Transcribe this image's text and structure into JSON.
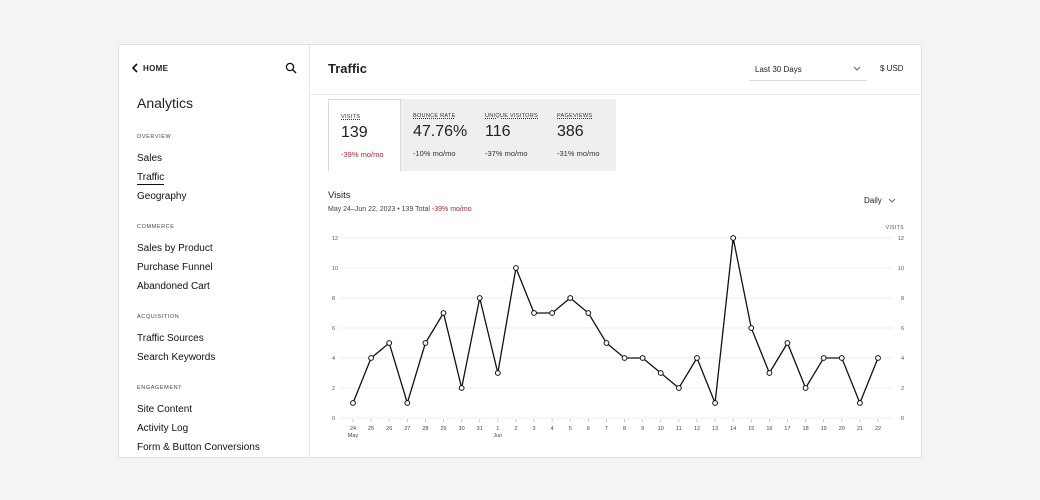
{
  "sidebar": {
    "home_label": "HOME",
    "title": "Analytics",
    "sections": [
      {
        "label": "OVERVIEW",
        "items": [
          {
            "label": "Sales"
          },
          {
            "label": "Traffic"
          },
          {
            "label": "Geography"
          }
        ]
      },
      {
        "label": "COMMERCE",
        "items": [
          {
            "label": "Sales by Product"
          },
          {
            "label": "Purchase Funnel"
          },
          {
            "label": "Abandoned Cart"
          }
        ]
      },
      {
        "label": "ACQUISITION",
        "items": [
          {
            "label": "Traffic Sources"
          },
          {
            "label": "Search Keywords"
          }
        ]
      },
      {
        "label": "ENGAGEMENT",
        "items": [
          {
            "label": "Site Content"
          },
          {
            "label": "Activity Log"
          },
          {
            "label": "Form & Button Conversions"
          }
        ]
      }
    ],
    "active_item": "Traffic"
  },
  "header": {
    "title": "Traffic",
    "date_range": "Last 30 Days",
    "currency": "$ USD"
  },
  "metrics": [
    {
      "label": "VISITS",
      "value": "139",
      "change": "-39% mo/mo"
    },
    {
      "label": "BOUNCE RATE",
      "value": "47.76%",
      "change": "-10% mo/mo"
    },
    {
      "label": "UNIQUE VISITORS",
      "value": "116",
      "change": "-37% mo/mo"
    },
    {
      "label": "PAGEVIEWS",
      "value": "386",
      "change": "-31% mo/mo"
    }
  ],
  "chart": {
    "title": "Visits",
    "subtitle_range": "May 24–Jun 22, 2023 • 139 Total",
    "subtitle_change": "-39% mo/mo",
    "interval": "Daily"
  },
  "colors": {
    "negative": "#b0242c",
    "line": "#111111"
  },
  "chart_data": {
    "type": "line",
    "x": [
      "24",
      "25",
      "26",
      "27",
      "28",
      "29",
      "30",
      "31",
      "1",
      "2",
      "3",
      "4",
      "5",
      "6",
      "7",
      "8",
      "9",
      "10",
      "11",
      "12",
      "13",
      "14",
      "15",
      "16",
      "17",
      "18",
      "19",
      "20",
      "21",
      "22"
    ],
    "month_labels": [
      {
        "index": 0,
        "label": "May"
      },
      {
        "index": 8,
        "label": "Jun"
      }
    ],
    "series": [
      {
        "values": [
          1,
          4,
          5,
          1,
          5,
          7,
          2,
          8,
          3,
          10,
          7,
          7,
          8,
          7,
          5,
          4,
          4,
          3,
          2,
          4,
          1,
          12,
          6,
          3,
          5,
          2,
          4,
          4,
          1,
          4
        ]
      }
    ],
    "ylim": [
      0,
      12
    ],
    "yticks": [
      0,
      2,
      4,
      6,
      8,
      10,
      12
    ],
    "right_axis_label": "VISITS",
    "grid": true
  }
}
